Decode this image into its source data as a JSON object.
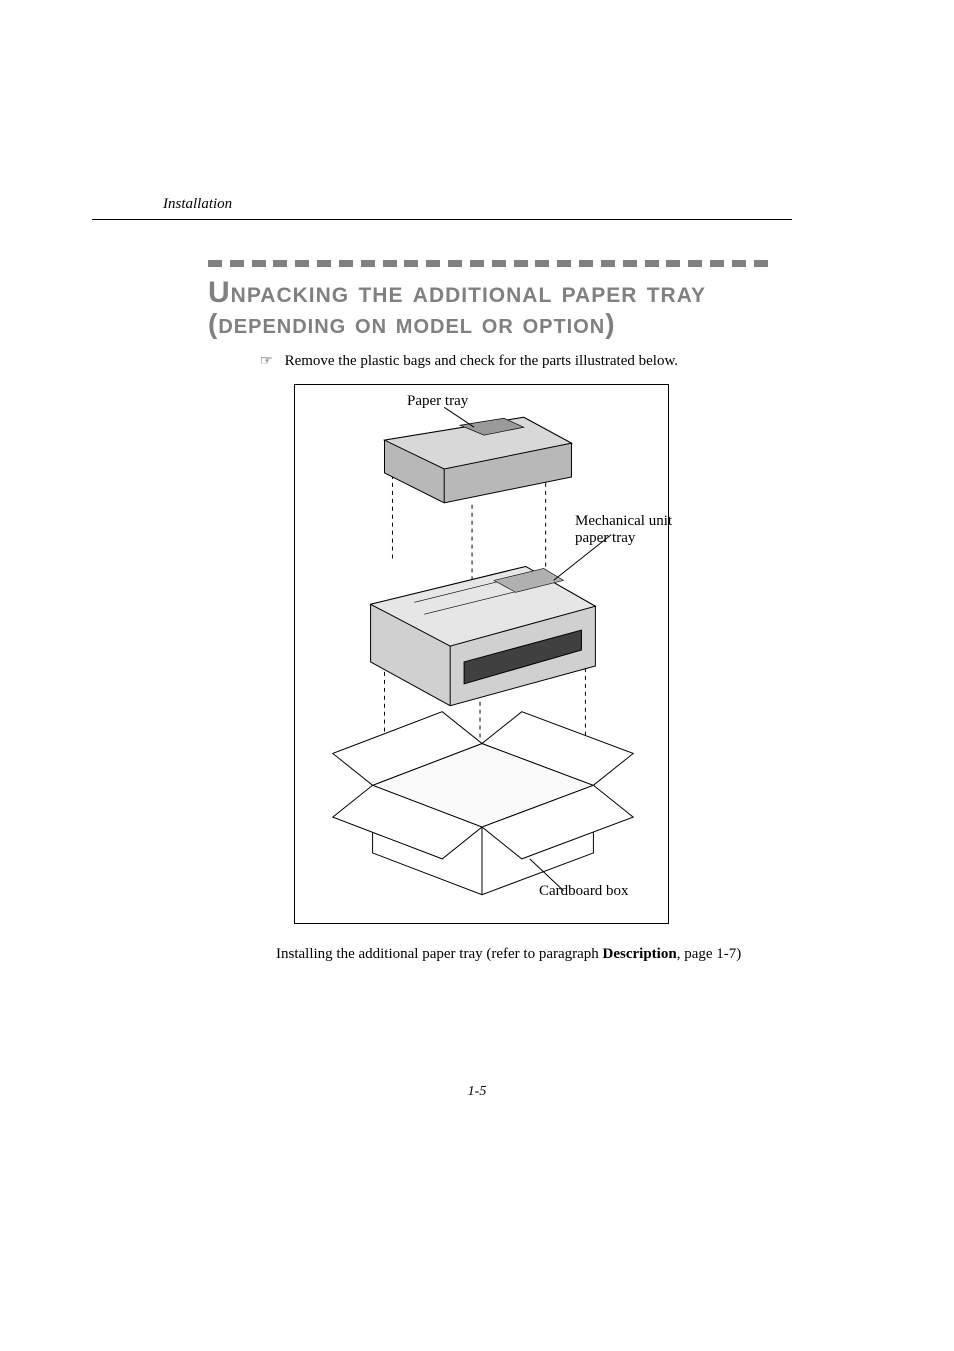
{
  "header": {
    "section": "Installation"
  },
  "title": {
    "line1": "Unpacking the additional paper tray",
    "line2": "(depending on model or option)"
  },
  "bullet": {
    "icon": "☞",
    "text": "Remove the plastic bags and check for the parts illustrated below."
  },
  "figure": {
    "type": "diagram",
    "description": "exploded assembly: paper tray above mechanical unit above open cardboard box, with dashed alignment lines",
    "border_color": "#000000",
    "background_color": "#ffffff",
    "stroke_color": "#000000",
    "dash_stroke": "#000000",
    "tray_fill": "#b8b8b8",
    "unit_fill": "#d0d0d0",
    "box_fill": "#ffffff",
    "labels": {
      "paper_tray": "Paper tray",
      "mechanical_unit_l1": "Mechanical unit",
      "mechanical_unit_l2": "paper tray",
      "cardboard_box": "Cardboard box"
    }
  },
  "closing": {
    "prefix": "Installing the additional paper tray (refer to paragraph ",
    "bold": "Description",
    "suffix": ", page 1-7)"
  },
  "footer": {
    "page": "1-5"
  },
  "style": {
    "dash_color": "#808080",
    "title_color": "#808080",
    "dash_count": 26
  }
}
